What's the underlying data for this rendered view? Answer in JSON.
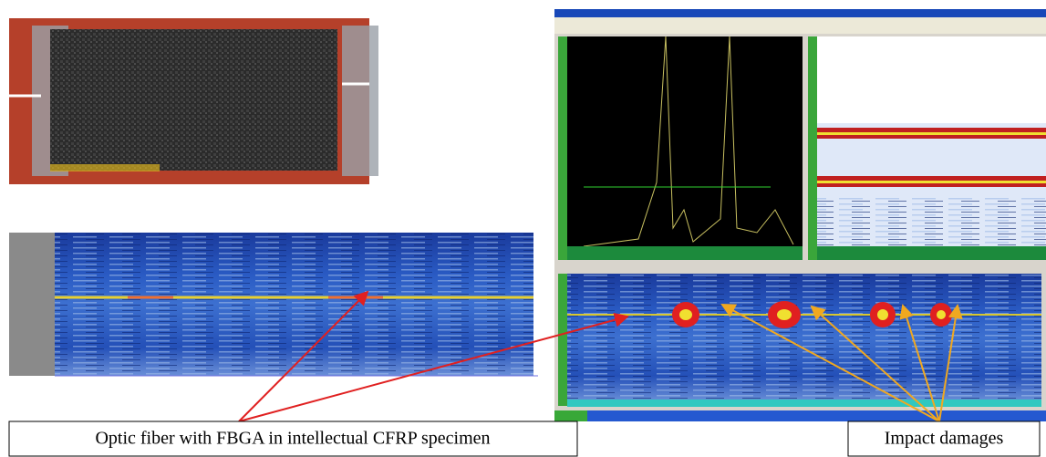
{
  "labels": {
    "fiber": "Optic fiber with FBGA in intellectual CFRP specimen",
    "impact": "Impact damages"
  }
}
